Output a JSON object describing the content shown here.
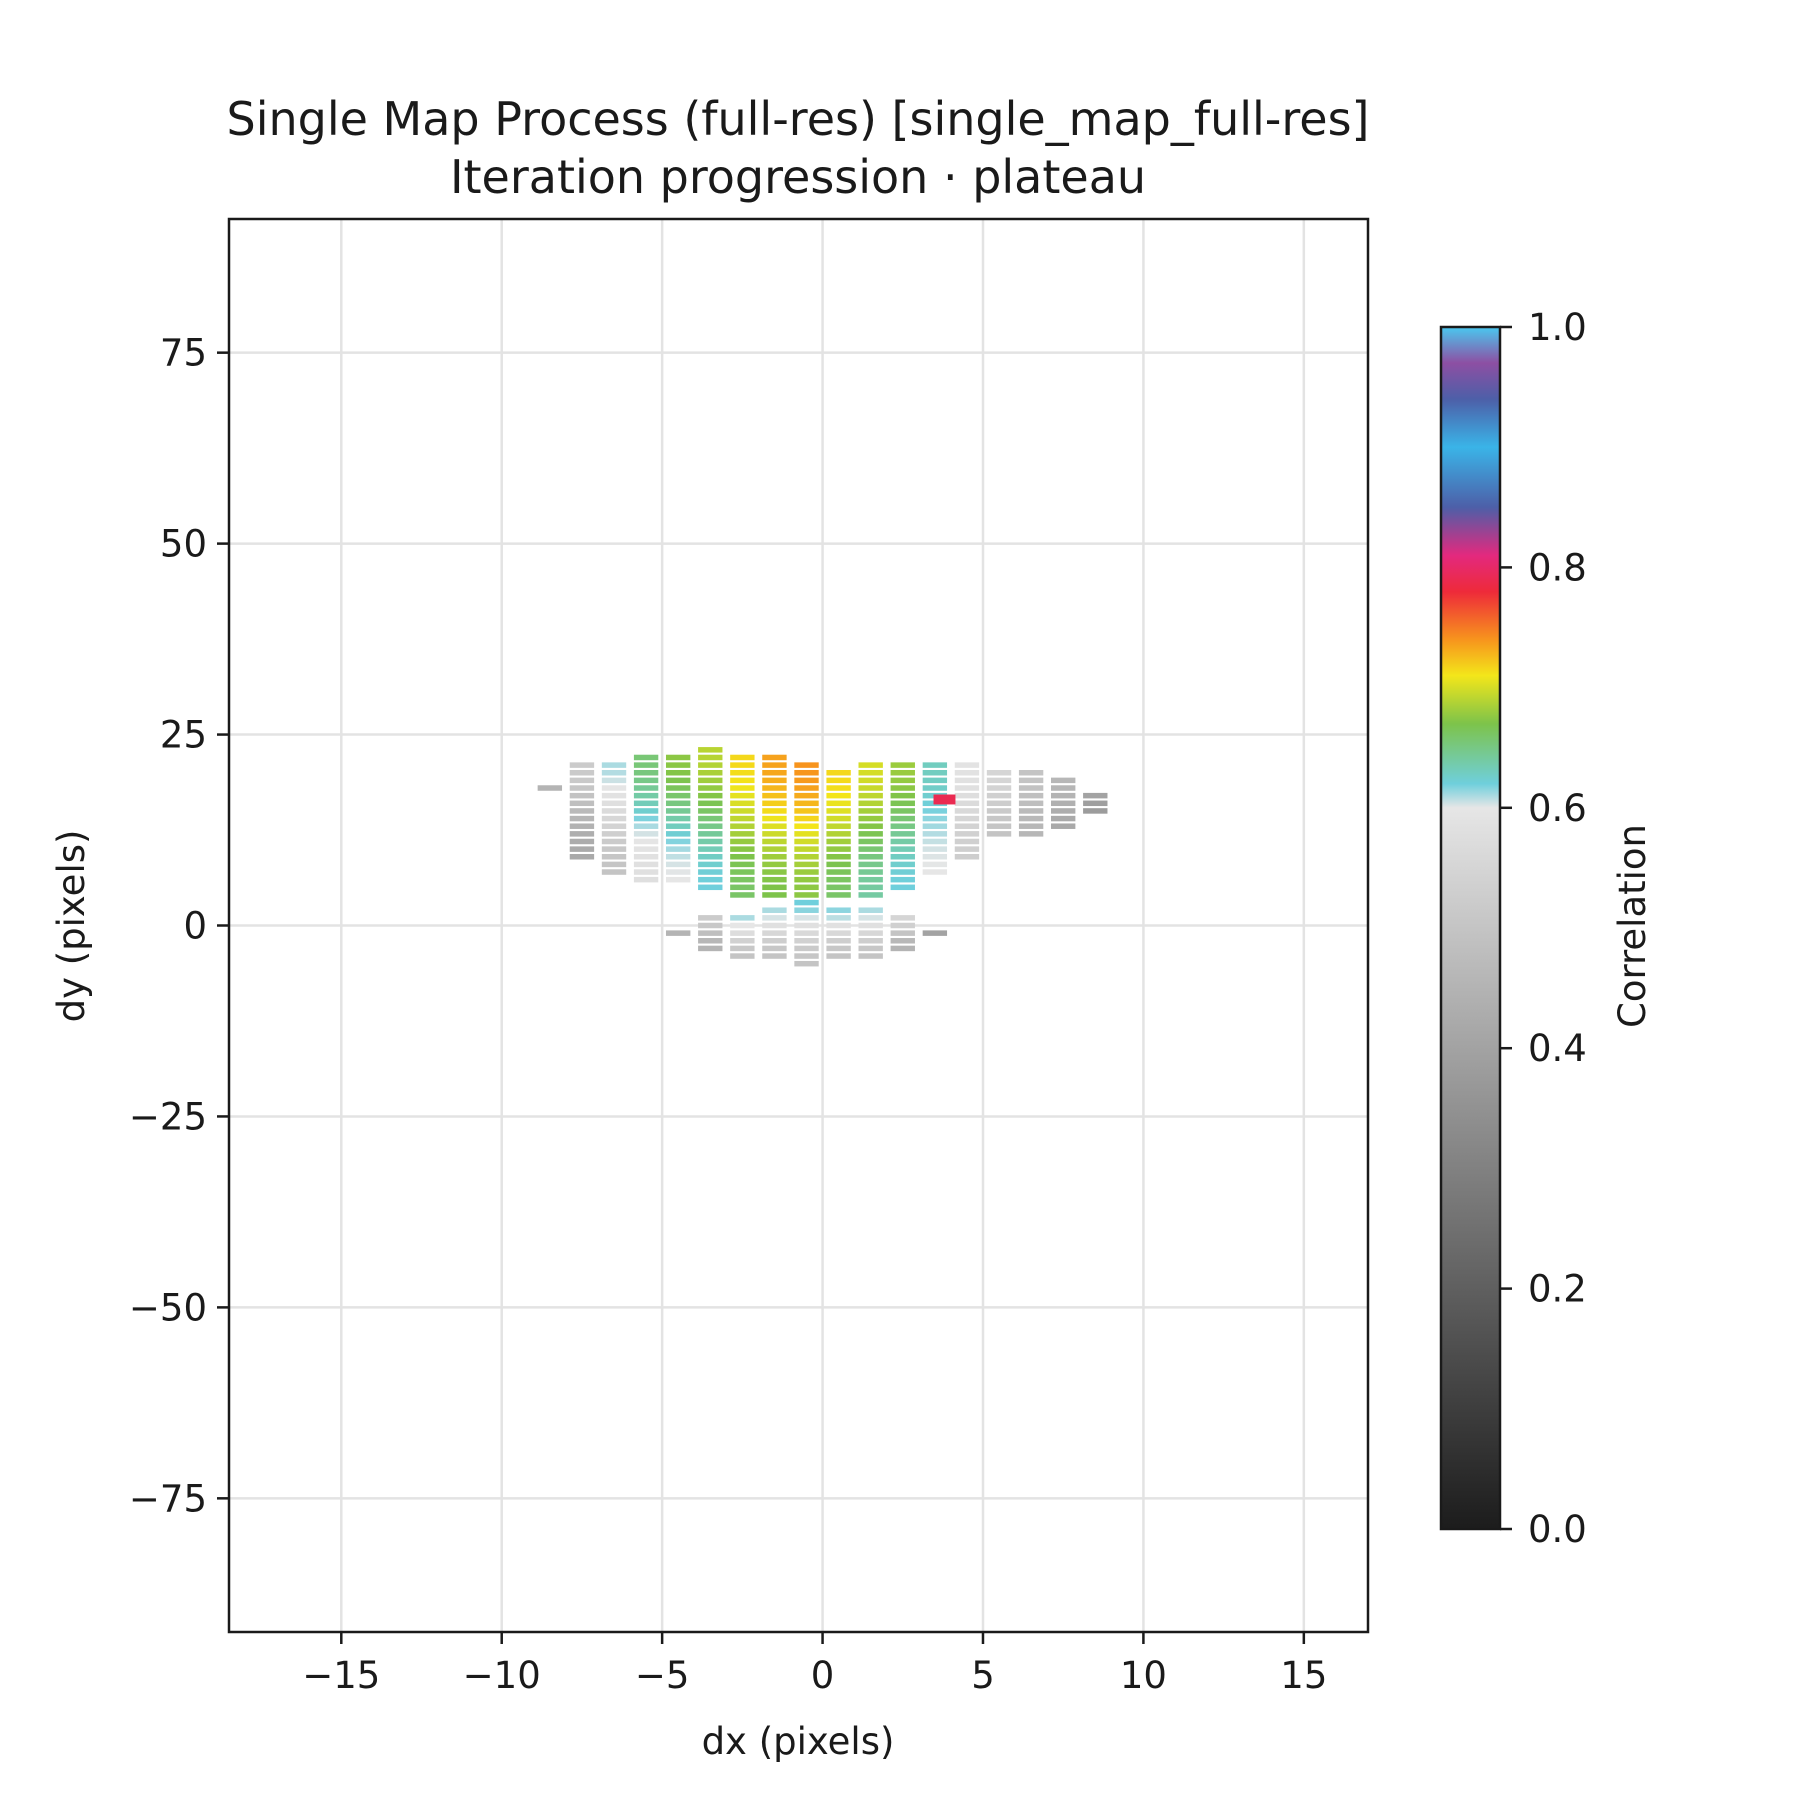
{
  "chart_data": {
    "type": "heatmap",
    "title": "Single Map Process (full-res) [single_map_full-res]",
    "subtitle": "Iteration progression · plateau",
    "xlabel": "dx (pixels)",
    "ylabel": "dy (pixels)",
    "xlim": [
      -18.5,
      17.0
    ],
    "ylim": [
      -92.5,
      92.5
    ],
    "xticks": [
      -15,
      -10,
      -5,
      0,
      5,
      10,
      15
    ],
    "xtick_labels": [
      "−15",
      "−10",
      "−5",
      "0",
      "5",
      "10",
      "15"
    ],
    "yticks": [
      -75,
      -50,
      -25,
      0,
      25,
      50,
      75
    ],
    "ytick_labels": [
      "−75",
      "−50",
      "−25",
      "0",
      "25",
      "50",
      "75"
    ],
    "grid": true,
    "colorbar": {
      "label": "Correlation",
      "range": [
        0.0,
        1.0
      ],
      "ticks": [
        0.0,
        0.2,
        0.4,
        0.6,
        0.8,
        1.0
      ],
      "tick_labels": [
        "0.0",
        "0.2",
        "0.4",
        "0.6",
        "0.8",
        "1.0"
      ]
    },
    "colormap_stops": [
      {
        "v": 0.0,
        "color": "#1c1c1c"
      },
      {
        "v": 0.6,
        "color": "#e6e6e6"
      },
      {
        "v": 0.62,
        "color": "#6fcfdc"
      },
      {
        "v": 0.67,
        "color": "#7dc34a"
      },
      {
        "v": 0.71,
        "color": "#f3e61a"
      },
      {
        "v": 0.74,
        "color": "#f7941d"
      },
      {
        "v": 0.78,
        "color": "#ee2a3a"
      },
      {
        "v": 0.81,
        "color": "#e3297e"
      },
      {
        "v": 0.85,
        "color": "#4d5fa8"
      },
      {
        "v": 0.9,
        "color": "#3ab4e8"
      },
      {
        "v": 0.94,
        "color": "#4d5fa8"
      },
      {
        "v": 0.97,
        "color": "#8d4fa3"
      },
      {
        "v": 1.0,
        "color": "#4ac8ef"
      }
    ],
    "columns": [
      {
        "dx": -8.5,
        "segments": [
          {
            "y0": 18,
            "y1": 18,
            "c0": 0.45,
            "c1": 0.45
          }
        ]
      },
      {
        "dx": -7.5,
        "segments": [
          {
            "y0": 9,
            "y1": 21,
            "c0": 0.42,
            "c1": 0.52
          }
        ]
      },
      {
        "dx": -6.5,
        "segments": [
          {
            "y0": 7,
            "y1": 21,
            "c0": 0.5,
            "c1": 0.61
          }
        ]
      },
      {
        "dx": -5.5,
        "segments": [
          {
            "y0": 6,
            "y1": 22,
            "c0": 0.58,
            "c1": 0.655
          }
        ]
      },
      {
        "dx": -4.5,
        "segments": [
          {
            "y0": 6,
            "y1": 22,
            "c0": 0.6,
            "c1": 0.675
          }
        ]
      },
      {
        "dx": -3.5,
        "segments": [
          {
            "y0": 5,
            "y1": 23,
            "c0": 0.62,
            "c1": 0.69
          }
        ]
      },
      {
        "dx": -2.5,
        "segments": [
          {
            "y0": 4,
            "y1": 22,
            "c0": 0.66,
            "c1": 0.715
          }
        ]
      },
      {
        "dx": -1.5,
        "segments": [
          {
            "y0": 4,
            "y1": 22,
            "c0": 0.67,
            "c1": 0.735
          }
        ]
      },
      {
        "dx": -0.5,
        "segments": [
          {
            "y0": 4,
            "y1": 21,
            "c0": 0.675,
            "c1": 0.74
          }
        ]
      },
      {
        "dx": 0.5,
        "segments": [
          {
            "y0": 4,
            "y1": 20,
            "c0": 0.66,
            "c1": 0.715
          }
        ]
      },
      {
        "dx": 1.5,
        "segments": [
          {
            "y0": 4,
            "y1": 21,
            "c0": 0.64,
            "c1": 0.7
          }
        ]
      },
      {
        "dx": 2.5,
        "segments": [
          {
            "y0": 5,
            "y1": 21,
            "c0": 0.62,
            "c1": 0.68
          }
        ]
      },
      {
        "dx": 3.5,
        "segments": [
          {
            "y0": 7,
            "y1": 21,
            "c0": 0.6,
            "c1": 0.63
          }
        ]
      },
      {
        "dx": 4.5,
        "segments": [
          {
            "y0": 9,
            "y1": 21,
            "c0": 0.53,
            "c1": 0.59
          }
        ]
      },
      {
        "dx": 5.5,
        "segments": [
          {
            "y0": 12,
            "y1": 20,
            "c0": 0.5,
            "c1": 0.55
          }
        ]
      },
      {
        "dx": 6.5,
        "segments": [
          {
            "y0": 12,
            "y1": 20,
            "c0": 0.46,
            "c1": 0.5
          }
        ]
      },
      {
        "dx": 7.5,
        "segments": [
          {
            "y0": 13,
            "y1": 19,
            "c0": 0.42,
            "c1": 0.46
          }
        ]
      },
      {
        "dx": 8.5,
        "segments": [
          {
            "y0": 15,
            "y1": 17,
            "c0": 0.38,
            "c1": 0.4
          }
        ]
      },
      {
        "dx": -4.5,
        "segments": [
          {
            "y0": -1,
            "y1": -1,
            "c0": 0.45,
            "c1": 0.45
          }
        ]
      },
      {
        "dx": -3.5,
        "segments": [
          {
            "y0": -3,
            "y1": 1,
            "c0": 0.45,
            "c1": 0.52
          }
        ]
      },
      {
        "dx": -2.5,
        "segments": [
          {
            "y0": -4,
            "y1": 1,
            "c0": 0.5,
            "c1": 0.61
          }
        ]
      },
      {
        "dx": -1.5,
        "segments": [
          {
            "y0": -4,
            "y1": 2,
            "c0": 0.5,
            "c1": 0.61
          }
        ]
      },
      {
        "dx": -0.5,
        "segments": [
          {
            "y0": -5,
            "y1": 3,
            "c0": 0.5,
            "c1": 0.62
          }
        ]
      },
      {
        "dx": 0.5,
        "segments": [
          {
            "y0": -4,
            "y1": 2,
            "c0": 0.5,
            "c1": 0.615
          }
        ]
      },
      {
        "dx": 1.5,
        "segments": [
          {
            "y0": -4,
            "y1": 2,
            "c0": 0.5,
            "c1": 0.61
          }
        ]
      },
      {
        "dx": 2.5,
        "segments": [
          {
            "y0": -3,
            "y1": 1,
            "c0": 0.45,
            "c1": 0.55
          }
        ]
      },
      {
        "dx": 3.5,
        "segments": [
          {
            "y0": -1,
            "y1": -1,
            "c0": 0.4,
            "c1": 0.4
          }
        ]
      }
    ],
    "highlight": {
      "dx": 3.8,
      "dy": 16.5,
      "correlation": 0.79
    }
  }
}
